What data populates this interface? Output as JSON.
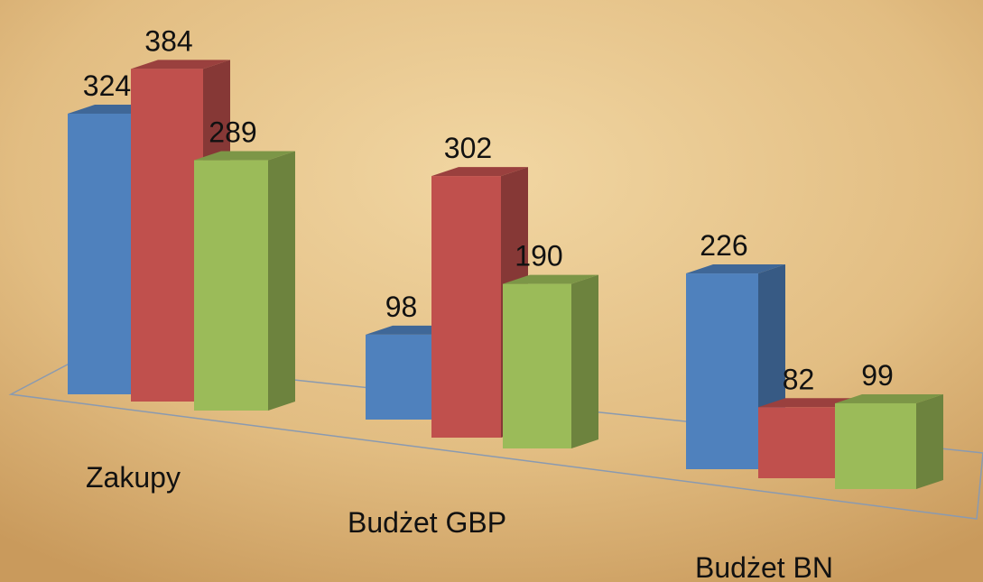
{
  "chart_data": {
    "type": "bar3d",
    "categories": [
      "Zakupy",
      "Budżet GBP",
      "Budżet BN"
    ],
    "series": [
      {
        "color": "#4f81bd",
        "values": [
          324,
          98,
          226
        ]
      },
      {
        "color": "#c0504d",
        "values": [
          384,
          302,
          82
        ]
      },
      {
        "color": "#9bbb59",
        "values": [
          289,
          190,
          99
        ]
      }
    ]
  }
}
